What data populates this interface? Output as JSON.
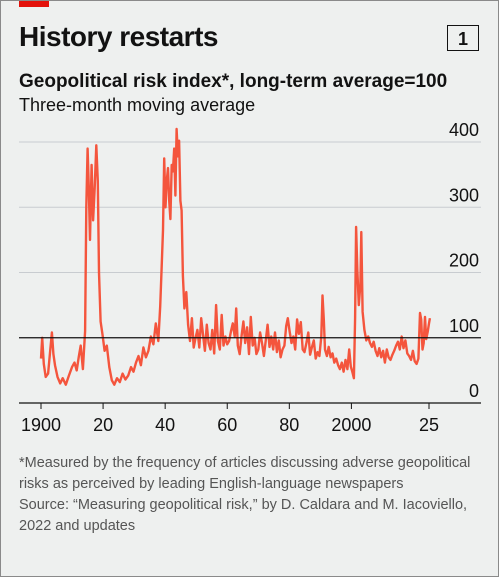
{
  "header": {
    "title": "History restarts",
    "figure_number": "1"
  },
  "chart_data": {
    "type": "line",
    "title": "Geopolitical risk index*, long-term average=100",
    "subtitle": "Three-month moving average",
    "xlabel": "",
    "ylabel": "",
    "xlim": [
      1895,
      2030
    ],
    "ylim": [
      0,
      420
    ],
    "y_ticks": [
      0,
      100,
      200,
      300,
      400
    ],
    "x_ticks": [
      {
        "value": 1900,
        "label": "1900"
      },
      {
        "value": 1920,
        "label": "20"
      },
      {
        "value": 1940,
        "label": "40"
      },
      {
        "value": 1960,
        "label": "60"
      },
      {
        "value": 1980,
        "label": "80"
      },
      {
        "value": 2000,
        "label": "2000"
      },
      {
        "value": 2025,
        "label": "25"
      }
    ],
    "reference_line": 100,
    "grid": true,
    "series": [
      {
        "color": "#f4553d",
        "points": [
          [
            1900,
            68
          ],
          [
            1900.4,
            100
          ],
          [
            1900.9,
            60
          ],
          [
            1901.5,
            40
          ],
          [
            1902.3,
            45
          ],
          [
            1903,
            82
          ],
          [
            1903.5,
            108
          ],
          [
            1904,
            75
          ],
          [
            1904.5,
            58
          ],
          [
            1905.3,
            40
          ],
          [
            1906.2,
            30
          ],
          [
            1907,
            38
          ],
          [
            1908,
            28
          ],
          [
            1909,
            42
          ],
          [
            1910,
            55
          ],
          [
            1910.8,
            62
          ],
          [
            1911.5,
            50
          ],
          [
            1912.2,
            72
          ],
          [
            1912.8,
            88
          ],
          [
            1913.5,
            52
          ],
          [
            1914.2,
            110
          ],
          [
            1914.6,
            300
          ],
          [
            1915,
            390
          ],
          [
            1915.4,
            330
          ],
          [
            1915.8,
            250
          ],
          [
            1916.3,
            365
          ],
          [
            1916.8,
            280
          ],
          [
            1917.3,
            330
          ],
          [
            1917.8,
            395
          ],
          [
            1918.3,
            340
          ],
          [
            1918.7,
            200
          ],
          [
            1919.2,
            125
          ],
          [
            1919.8,
            105
          ],
          [
            1920.5,
            80
          ],
          [
            1921.2,
            88
          ],
          [
            1922,
            55
          ],
          [
            1922.8,
            35
          ],
          [
            1923.6,
            28
          ],
          [
            1924.5,
            38
          ],
          [
            1925.4,
            32
          ],
          [
            1926.3,
            45
          ],
          [
            1927.2,
            36
          ],
          [
            1928.1,
            42
          ],
          [
            1929,
            55
          ],
          [
            1929.8,
            48
          ],
          [
            1930.6,
            62
          ],
          [
            1931.4,
            72
          ],
          [
            1932.2,
            58
          ],
          [
            1933,
            85
          ],
          [
            1933.8,
            70
          ],
          [
            1934.6,
            80
          ],
          [
            1935.4,
            102
          ],
          [
            1936.2,
            90
          ],
          [
            1937,
            122
          ],
          [
            1937.8,
            95
          ],
          [
            1938.4,
            148
          ],
          [
            1938.9,
            210
          ],
          [
            1939.3,
            265
          ],
          [
            1939.7,
            375
          ],
          [
            1940.1,
            300
          ],
          [
            1940.5,
            340
          ],
          [
            1940.9,
            360
          ],
          [
            1941.3,
            310
          ],
          [
            1941.7,
            282
          ],
          [
            1942.1,
            365
          ],
          [
            1942.5,
            355
          ],
          [
            1942.9,
            390
          ],
          [
            1943.3,
            318
          ],
          [
            1943.7,
            420
          ],
          [
            1944.1,
            378
          ],
          [
            1944.5,
            402
          ],
          [
            1944.9,
            310
          ],
          [
            1945.3,
            295
          ],
          [
            1945.7,
            195
          ],
          [
            1946.2,
            145
          ],
          [
            1946.8,
            170
          ],
          [
            1947.4,
            120
          ],
          [
            1948,
            95
          ],
          [
            1948.6,
            130
          ],
          [
            1949.2,
            85
          ],
          [
            1949.8,
            100
          ],
          [
            1950.4,
            112
          ],
          [
            1951,
            85
          ],
          [
            1951.6,
            130
          ],
          [
            1952.2,
            105
          ],
          [
            1952.8,
            80
          ],
          [
            1953.4,
            120
          ],
          [
            1954,
            92
          ],
          [
            1954.6,
            82
          ],
          [
            1955.2,
            112
          ],
          [
            1955.8,
            76
          ],
          [
            1956.4,
            150
          ],
          [
            1957,
            95
          ],
          [
            1957.6,
            82
          ],
          [
            1958.2,
            135
          ],
          [
            1958.8,
            88
          ],
          [
            1959.4,
            102
          ],
          [
            1960,
            90
          ],
          [
            1960.6,
            95
          ],
          [
            1961.2,
            110
          ],
          [
            1961.8,
            122
          ],
          [
            1962.4,
            102
          ],
          [
            1962.9,
            145
          ],
          [
            1963.4,
            88
          ],
          [
            1964,
            75
          ],
          [
            1964.6,
            102
          ],
          [
            1965.2,
            125
          ],
          [
            1965.8,
            92
          ],
          [
            1966.4,
            116
          ],
          [
            1967,
            75
          ],
          [
            1967.6,
            132
          ],
          [
            1968.2,
            88
          ],
          [
            1968.8,
            100
          ],
          [
            1969.4,
            75
          ],
          [
            1970,
            82
          ],
          [
            1970.6,
            108
          ],
          [
            1971.2,
            92
          ],
          [
            1971.8,
            72
          ],
          [
            1972.4,
            95
          ],
          [
            1973,
            120
          ],
          [
            1973.6,
            86
          ],
          [
            1974.2,
            102
          ],
          [
            1974.8,
            82
          ],
          [
            1975.4,
            108
          ],
          [
            1976,
            78
          ],
          [
            1976.6,
            96
          ],
          [
            1977.2,
            70
          ],
          [
            1977.8,
            82
          ],
          [
            1978.4,
            88
          ],
          [
            1979,
            118
          ],
          [
            1979.5,
            130
          ],
          [
            1980.1,
            110
          ],
          [
            1980.7,
            92
          ],
          [
            1981.3,
            102
          ],
          [
            1981.9,
            82
          ],
          [
            1982.5,
            128
          ],
          [
            1983.1,
            106
          ],
          [
            1983.7,
            124
          ],
          [
            1984.3,
            82
          ],
          [
            1984.9,
            78
          ],
          [
            1985.5,
            92
          ],
          [
            1986.1,
            108
          ],
          [
            1986.7,
            74
          ],
          [
            1987.3,
            86
          ],
          [
            1987.9,
            96
          ],
          [
            1988.5,
            68
          ],
          [
            1989.1,
            78
          ],
          [
            1989.7,
            72
          ],
          [
            1990.3,
            102
          ],
          [
            1990.7,
            165
          ],
          [
            1991.1,
            128
          ],
          [
            1991.5,
            82
          ],
          [
            1992.1,
            72
          ],
          [
            1992.7,
            86
          ],
          [
            1993.3,
            70
          ],
          [
            1993.9,
            76
          ],
          [
            1994.5,
            62
          ],
          [
            1995.1,
            68
          ],
          [
            1995.7,
            58
          ],
          [
            1996.3,
            52
          ],
          [
            1996.9,
            62
          ],
          [
            1997.5,
            48
          ],
          [
            1998.1,
            66
          ],
          [
            1998.7,
            52
          ],
          [
            1999.3,
            82
          ],
          [
            1999.8,
            56
          ],
          [
            2000.3,
            48
          ],
          [
            2000.8,
            38
          ],
          [
            2001.2,
            130
          ],
          [
            2001.5,
            270
          ],
          [
            2001.9,
            205
          ],
          [
            2002.4,
            150
          ],
          [
            2002.9,
            182
          ],
          [
            2003.2,
            262
          ],
          [
            2003.6,
            140
          ],
          [
            2004.2,
            112
          ],
          [
            2004.8,
            96
          ],
          [
            2005.4,
            102
          ],
          [
            2006,
            92
          ],
          [
            2006.6,
            86
          ],
          [
            2007.2,
            94
          ],
          [
            2007.8,
            80
          ],
          [
            2008.4,
            72
          ],
          [
            2009,
            84
          ],
          [
            2009.6,
            70
          ],
          [
            2010.2,
            80
          ],
          [
            2010.8,
            62
          ],
          [
            2011.4,
            82
          ],
          [
            2012,
            70
          ],
          [
            2012.6,
            66
          ],
          [
            2013.2,
            74
          ],
          [
            2013.8,
            80
          ],
          [
            2014.4,
            88
          ],
          [
            2015,
            94
          ],
          [
            2015.6,
            82
          ],
          [
            2016.2,
            102
          ],
          [
            2016.8,
            84
          ],
          [
            2017.4,
            96
          ],
          [
            2018,
            76
          ],
          [
            2018.6,
            72
          ],
          [
            2019.2,
            66
          ],
          [
            2019.8,
            80
          ],
          [
            2020.4,
            64
          ],
          [
            2021,
            60
          ],
          [
            2021.6,
            68
          ],
          [
            2022.1,
            138
          ],
          [
            2022.5,
            128
          ],
          [
            2022.9,
            82
          ],
          [
            2023.3,
            92
          ],
          [
            2023.7,
            132
          ],
          [
            2024.1,
            98
          ],
          [
            2024.6,
            110
          ],
          [
            2025,
            122
          ],
          [
            2025.3,
            130
          ]
        ]
      }
    ]
  },
  "footnote": {
    "note": "*Measured by the frequency of articles discussing adverse geopolitical risks as perceived by leading English-language newspapers",
    "source": "Source: “Measuring geopolitical risk,” by D. Caldara and M. Iacoviello, 2022 and updates"
  }
}
